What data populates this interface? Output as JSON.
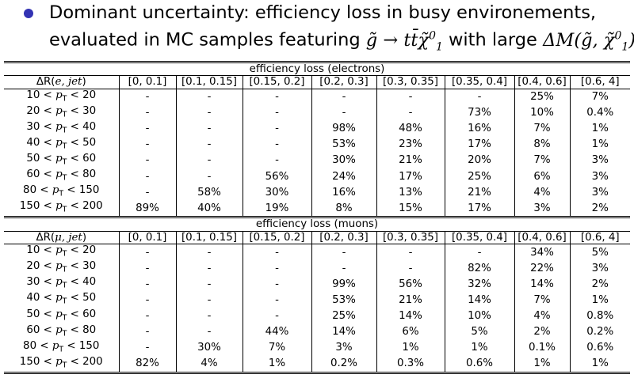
{
  "header": {
    "line1": "Dominant uncertainty: efficiency loss in busy environements,",
    "line2_prefix": "evaluated in MC samples featuring ",
    "line2_mid": " with large ",
    "decay": {
      "lhs": "g̃",
      "arrow": "→",
      "rhs": "tt̄χ̃",
      "rhs_sup": "0",
      "rhs_sub": "1"
    },
    "delta": {
      "prefix": "ΔM(g̃, χ̃",
      "sup": "0",
      "sub": "1",
      "close": ")"
    }
  },
  "columns": [
    "[0, 0.1]",
    "[0.1, 0.15]",
    "[0.15, 0.2]",
    "[0.2, 0.3]",
    "[0.3, 0.35]",
    "[0.35, 0.4]",
    "[0.4, 0.6]",
    "[0.6, 4]"
  ],
  "sections": [
    {
      "title": "efficiency loss (electrons)",
      "dr_label_prefix": "ΔR(",
      "dr_label_var": "e, jet",
      "dr_label_suffix": ")",
      "rows": [
        {
          "label": "10 < pT < 20",
          "cells": [
            "-",
            "-",
            "-",
            "-",
            "-",
            "-",
            "25%",
            "7%"
          ]
        },
        {
          "label": "20 < pT < 30",
          "cells": [
            "-",
            "-",
            "-",
            "-",
            "-",
            "73%",
            "10%",
            "0.4%"
          ]
        },
        {
          "label": "30 < pT < 40",
          "cells": [
            "-",
            "-",
            "-",
            "98%",
            "48%",
            "16%",
            "7%",
            "1%"
          ]
        },
        {
          "label": "40 < pT < 50",
          "cells": [
            "-",
            "-",
            "-",
            "53%",
            "23%",
            "17%",
            "8%",
            "1%"
          ]
        },
        {
          "label": "50 < pT < 60",
          "cells": [
            "-",
            "-",
            "-",
            "30%",
            "21%",
            "20%",
            "7%",
            "3%"
          ]
        },
        {
          "label": "60 < pT < 80",
          "cells": [
            "-",
            "-",
            "56%",
            "24%",
            "17%",
            "25%",
            "6%",
            "3%"
          ]
        },
        {
          "label": "80 < pT < 150",
          "cells": [
            "-",
            "58%",
            "30%",
            "16%",
            "13%",
            "21%",
            "4%",
            "3%"
          ]
        },
        {
          "label": "150 < pT < 200",
          "cells": [
            "89%",
            "40%",
            "19%",
            "8%",
            "15%",
            "17%",
            "3%",
            "2%"
          ]
        }
      ]
    },
    {
      "title": "efficiency loss (muons)",
      "dr_label_prefix": "ΔR(",
      "dr_label_var": "μ, jet",
      "dr_label_suffix": ")",
      "rows": [
        {
          "label": "10 < pT < 20",
          "cells": [
            "-",
            "-",
            "-",
            "-",
            "-",
            "-",
            "34%",
            "5%"
          ]
        },
        {
          "label": "20 < pT < 30",
          "cells": [
            "-",
            "-",
            "-",
            "-",
            "-",
            "82%",
            "22%",
            "3%"
          ]
        },
        {
          "label": "30 < pT < 40",
          "cells": [
            "-",
            "-",
            "-",
            "99%",
            "56%",
            "32%",
            "14%",
            "2%"
          ]
        },
        {
          "label": "40 < pT < 50",
          "cells": [
            "-",
            "-",
            "-",
            "53%",
            "21%",
            "14%",
            "7%",
            "1%"
          ]
        },
        {
          "label": "50 < pT < 60",
          "cells": [
            "-",
            "-",
            "-",
            "25%",
            "14%",
            "10%",
            "4%",
            "0.8%"
          ]
        },
        {
          "label": "60 < pT < 80",
          "cells": [
            "-",
            "-",
            "44%",
            "14%",
            "6%",
            "5%",
            "2%",
            "0.2%"
          ]
        },
        {
          "label": "80 < pT < 150",
          "cells": [
            "-",
            "30%",
            "7%",
            "3%",
            "1%",
            "1%",
            "0.1%",
            "0.6%"
          ]
        },
        {
          "label": "150 < pT < 200",
          "cells": [
            "82%",
            "4%",
            "1%",
            "0.2%",
            "0.3%",
            "0.6%",
            "1%",
            "1%"
          ]
        }
      ]
    }
  ],
  "colors": {
    "bullet": "#3333b3",
    "text": "#000000",
    "background": "#ffffff"
  }
}
